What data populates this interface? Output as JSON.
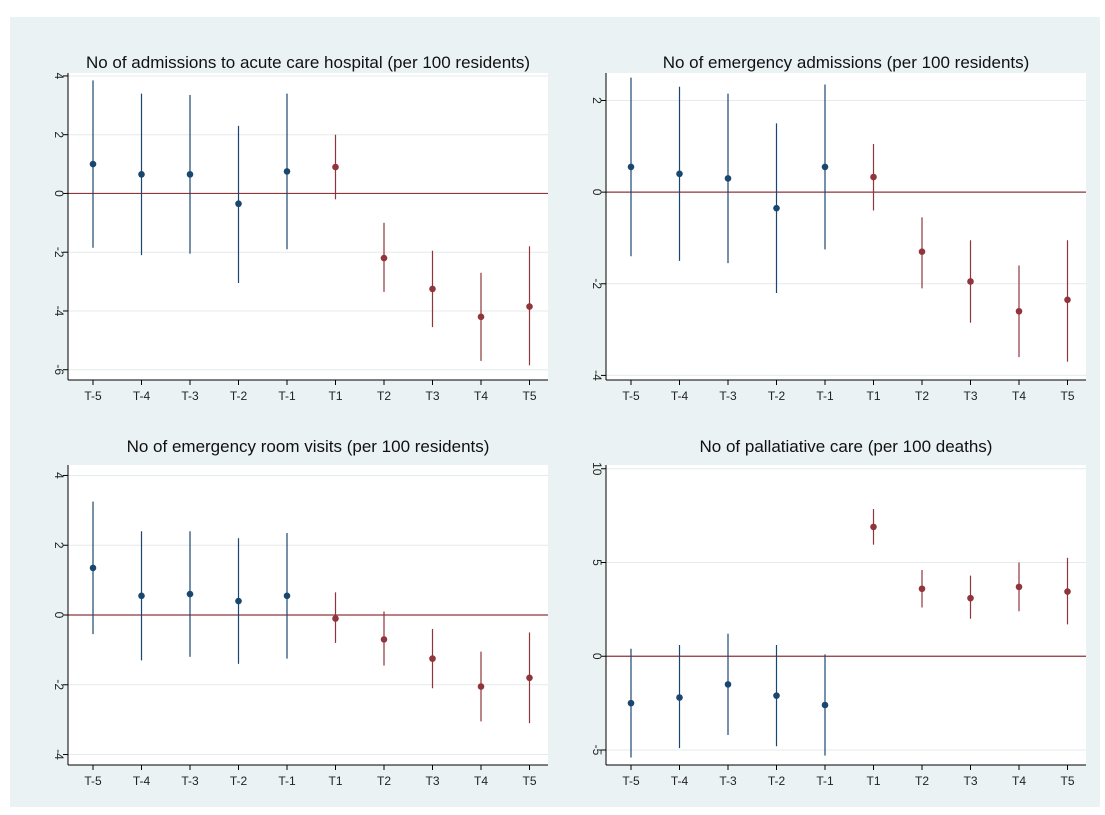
{
  "colors": {
    "background": "#eaf2f3",
    "plot_area": "#ffffff",
    "grid": "#e3ebec",
    "axis": "#000000",
    "pre_period": "#1a476f",
    "post_period": "#90353b",
    "zero_line": "#90353b"
  },
  "chart_data": [
    {
      "type": "scatter",
      "title": "No of admissions to acute care hospital (per 100 residents)",
      "xlabel": "",
      "ylabel": "",
      "categories": [
        "T-5",
        "T-4",
        "T-3",
        "T-2",
        "T-1",
        "T1",
        "T2",
        "T3",
        "T4",
        "T5"
      ],
      "ylim": [
        -6.35,
        4.1
      ],
      "yticks": [
        -6,
        -4,
        -2,
        0,
        2,
        4
      ],
      "ytick_labels": [
        "-6",
        "-4",
        "-2",
        "0",
        "2",
        "4"
      ],
      "reference_line": 0,
      "estimates": [
        1.0,
        0.65,
        0.65,
        -0.35,
        0.75,
        0.9,
        -2.2,
        -3.25,
        -4.2,
        -3.85
      ],
      "ci_low": [
        -1.85,
        -2.1,
        -2.05,
        -3.05,
        -1.9,
        -0.2,
        -3.35,
        -4.55,
        -5.7,
        -5.85
      ],
      "ci_high": [
        3.85,
        3.4,
        3.35,
        2.3,
        3.4,
        2.0,
        -1.0,
        -1.95,
        -2.7,
        -1.8
      ],
      "series": [
        {
          "name": "",
          "group": "pre",
          "points": [
            0,
            1,
            2,
            3,
            4
          ]
        },
        {
          "name": "",
          "group": "post",
          "points": [
            5,
            6,
            7,
            8,
            9
          ]
        }
      ],
      "grid": true,
      "legend": "none"
    },
    {
      "type": "scatter",
      "title": "No of emergency admissions (per 100 residents)",
      "xlabel": "",
      "ylabel": "",
      "categories": [
        "T-5",
        "T-4",
        "T-3",
        "T-2",
        "T-1",
        "T1",
        "T2",
        "T3",
        "T4",
        "T5"
      ],
      "ylim": [
        -4.1,
        2.6
      ],
      "yticks": [
        -4,
        -2,
        0,
        2
      ],
      "ytick_labels": [
        "-4",
        "-2",
        "0",
        "2"
      ],
      "reference_line": 0,
      "estimates": [
        0.55,
        0.4,
        0.3,
        -0.35,
        0.55,
        0.33,
        -1.3,
        -1.95,
        -2.6,
        -2.35
      ],
      "ci_low": [
        -1.4,
        -1.5,
        -1.55,
        -2.2,
        -1.25,
        -0.4,
        -2.1,
        -2.85,
        -3.6,
        -3.7
      ],
      "ci_high": [
        2.5,
        2.3,
        2.15,
        1.5,
        2.35,
        1.05,
        -0.55,
        -1.05,
        -1.6,
        -1.05
      ],
      "series": [
        {
          "name": "",
          "group": "pre",
          "points": [
            0,
            1,
            2,
            3,
            4
          ]
        },
        {
          "name": "",
          "group": "post",
          "points": [
            5,
            6,
            7,
            8,
            9
          ]
        }
      ],
      "grid": true,
      "legend": "none"
    },
    {
      "type": "scatter",
      "title": "No of emergency room visits (per 100 residents)",
      "xlabel": "",
      "ylabel": "",
      "categories": [
        "T-5",
        "T-4",
        "T-3",
        "T-2",
        "T-1",
        "T1",
        "T2",
        "T3",
        "T4",
        "T5"
      ],
      "ylim": [
        -4.3,
        4.3
      ],
      "yticks": [
        -4,
        -2,
        0,
        2,
        4
      ],
      "ytick_labels": [
        "-4",
        "-2",
        "0",
        "2",
        "4"
      ],
      "reference_line": 0,
      "estimates": [
        1.35,
        0.55,
        0.6,
        0.4,
        0.55,
        -0.1,
        -0.7,
        -1.25,
        -2.05,
        -1.8
      ],
      "ci_low": [
        -0.55,
        -1.3,
        -1.2,
        -1.4,
        -1.25,
        -0.8,
        -1.45,
        -2.1,
        -3.05,
        -3.1
      ],
      "ci_high": [
        3.25,
        2.4,
        2.4,
        2.2,
        2.35,
        0.65,
        0.1,
        -0.4,
        -1.05,
        -0.5
      ],
      "series": [
        {
          "name": "",
          "group": "pre",
          "points": [
            0,
            1,
            2,
            3,
            4
          ]
        },
        {
          "name": "",
          "group": "post",
          "points": [
            5,
            6,
            7,
            8,
            9
          ]
        }
      ],
      "grid": true,
      "legend": "none"
    },
    {
      "type": "scatter",
      "title": "No of pallatiative care (per 100 deaths)",
      "xlabel": "",
      "ylabel": "",
      "categories": [
        "T-5",
        "T-4",
        "T-3",
        "T-2",
        "T-1",
        "T1",
        "T2",
        "T3",
        "T4",
        "T5"
      ],
      "ylim": [
        -5.8,
        10.2
      ],
      "yticks": [
        -5,
        0,
        5,
        10
      ],
      "ytick_labels": [
        "-5",
        "0",
        "5",
        "10"
      ],
      "reference_line": 0,
      "estimates": [
        -2.5,
        -2.2,
        -1.5,
        -2.1,
        -2.6,
        6.9,
        3.6,
        3.1,
        3.7,
        3.45
      ],
      "ci_low": [
        -5.4,
        -4.9,
        -4.2,
        -4.8,
        -5.3,
        5.95,
        2.6,
        2.0,
        2.4,
        1.7
      ],
      "ci_high": [
        0.4,
        0.6,
        1.2,
        0.6,
        0.1,
        7.85,
        4.6,
        4.3,
        5.0,
        5.25
      ],
      "series": [
        {
          "name": "",
          "group": "pre",
          "points": [
            0,
            1,
            2,
            3,
            4
          ]
        },
        {
          "name": "",
          "group": "post",
          "points": [
            5,
            6,
            7,
            8,
            9
          ]
        }
      ],
      "grid": true,
      "legend": "none"
    }
  ]
}
